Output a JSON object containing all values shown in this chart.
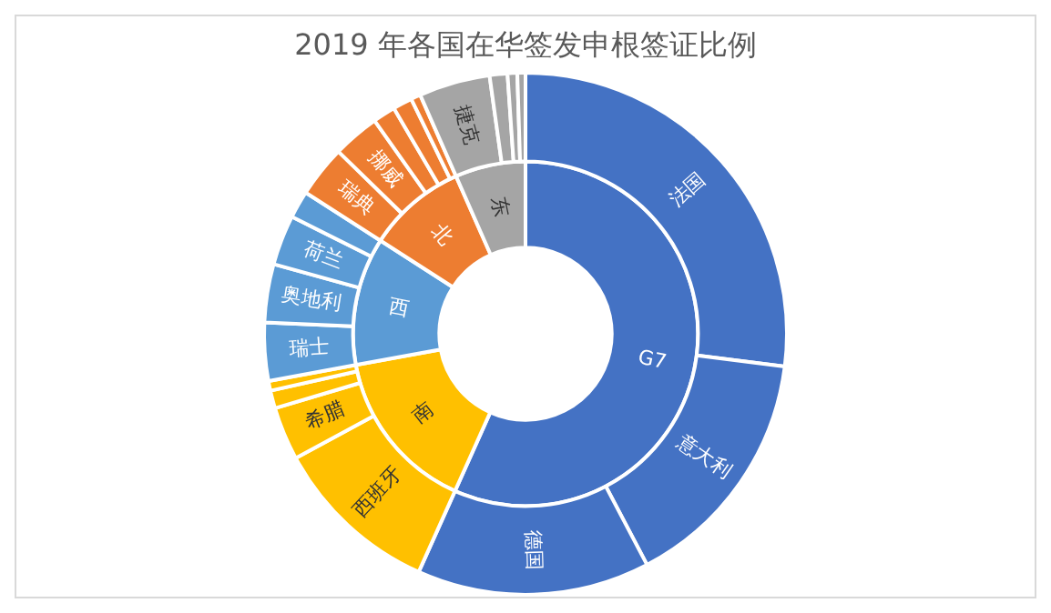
{
  "chart_data": [
    {
      "type": "donut",
      "title": "2019 年各国在华签发申根签证比例",
      "categories": [
        "G7",
        "南",
        "西",
        "北",
        "东"
      ],
      "values": [
        56.7,
        15.4,
        12.0,
        9.3,
        6.6
      ],
      "colors": [
        "#4472c4",
        "#ffc000",
        "#5b9bd5",
        "#ed7d31",
        "#a5a5a5"
      ]
    },
    {
      "type": "donut",
      "categories": [
        "法国",
        "意大利",
        "德国",
        "西班牙",
        "希腊",
        null,
        null,
        "瑞士",
        "奥地利",
        "荷兰",
        null,
        "瑞典",
        "挪威",
        null,
        null,
        null,
        "捷克",
        null,
        null,
        null
      ],
      "values": [
        27.0,
        15.3,
        14.4,
        10.4,
        3.3,
        1.1,
        0.6,
        3.6,
        3.6,
        3.1,
        1.7,
        3.2,
        2.9,
        1.4,
        1.2,
        0.6,
        4.4,
        1.1,
        0.6,
        0.5
      ],
      "colors": [
        "#4472c4",
        "#4472c4",
        "#4472c4",
        "#ffc000",
        "#ffc000",
        "#ffc000",
        "#ffc000",
        "#5b9bd5",
        "#5b9bd5",
        "#5b9bd5",
        "#5b9bd5",
        "#ed7d31",
        "#ed7d31",
        "#ed7d31",
        "#ed7d31",
        "#ed7d31",
        "#a5a5a5",
        "#a5a5a5",
        "#a5a5a5",
        "#a5a5a5"
      ]
    }
  ]
}
